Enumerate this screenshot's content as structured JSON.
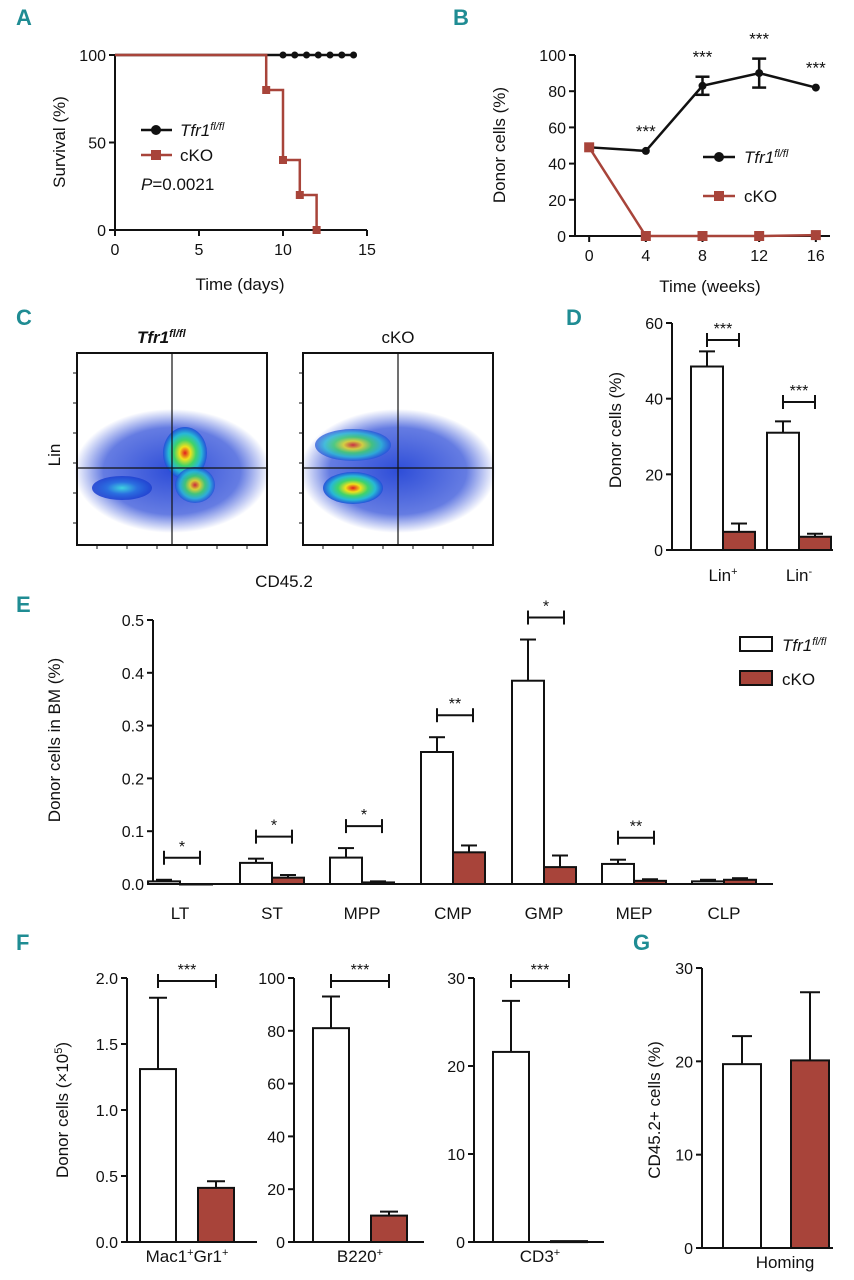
{
  "colors": {
    "teal": "#1f8c93",
    "red": "#a8443a",
    "black": "#111111"
  },
  "legend": {
    "flox": "Tfr1",
    "flox_sup": "fl/fl",
    "cko": "cKO"
  },
  "chart_data": [
    {
      "panel": "A",
      "type": "line",
      "xlabel": "Time (days)",
      "ylabel": "Survival (%)",
      "xlim": [
        0,
        15
      ],
      "ylim": [
        0,
        100
      ],
      "xticks": [
        0,
        5,
        10,
        15
      ],
      "yticks": [
        0,
        50,
        100
      ],
      "annotation": "=0.0021",
      "annotation_prefix": "P",
      "series": [
        {
          "name": "Tfr1 fl/fl",
          "steps": [
            [
              0,
              100
            ],
            [
              14.2,
              100
            ]
          ],
          "markers": [
            [
              10,
              100
            ],
            [
              10.7,
              100
            ],
            [
              11.4,
              100
            ],
            [
              12.1,
              100
            ],
            [
              12.8,
              100
            ],
            [
              13.5,
              100
            ],
            [
              14.2,
              100
            ]
          ]
        },
        {
          "name": "cKO",
          "steps": [
            [
              0,
              100
            ],
            [
              9,
              100
            ],
            [
              9,
              80
            ],
            [
              10,
              80
            ],
            [
              10,
              40
            ],
            [
              11,
              40
            ],
            [
              11,
              20
            ],
            [
              12,
              20
            ],
            [
              12,
              0
            ]
          ],
          "markers": [
            [
              9,
              80
            ],
            [
              10,
              40
            ],
            [
              11,
              20
            ],
            [
              12,
              0
            ]
          ]
        }
      ]
    },
    {
      "panel": "B",
      "type": "line",
      "xlabel": "Time (weeks)",
      "ylabel": "Donor cells (%)",
      "xlim": [
        -1,
        17
      ],
      "ylim": [
        0,
        100
      ],
      "xticks": [
        0,
        4,
        8,
        12,
        16
      ],
      "yticks": [
        0,
        20,
        40,
        60,
        80,
        100
      ],
      "x": [
        0,
        4,
        8,
        12,
        16
      ],
      "series": [
        {
          "name": "Tfr1 fl/fl",
          "values": [
            49,
            47,
            83,
            90,
            82
          ],
          "errors": [
            0,
            0,
            5,
            8,
            0
          ]
        },
        {
          "name": "cKO",
          "values": [
            49,
            0,
            0,
            0,
            0.5
          ],
          "errors": [
            0,
            0,
            0,
            0,
            0
          ]
        }
      ],
      "significance": [
        "",
        "***",
        "***",
        "***",
        "***"
      ]
    },
    {
      "panel": "C",
      "type": "flow-cytometry",
      "plots": [
        "Tfr1 fl/fl",
        "cKO"
      ],
      "xlabel": "CD45.2",
      "ylabel": "Lin"
    },
    {
      "panel": "D",
      "type": "bar",
      "ylabel": "Donor cells (%)",
      "ylim": [
        0,
        60
      ],
      "yticks": [
        0,
        20,
        40,
        60
      ],
      "categories": [
        "Lin",
        "Lin"
      ],
      "category_sups": [
        "+",
        "-"
      ],
      "series": [
        {
          "name": "Tfr1 fl/fl",
          "values": [
            48.5,
            31
          ],
          "errors": [
            4,
            3
          ]
        },
        {
          "name": "cKO",
          "values": [
            4.8,
            3.5
          ],
          "errors": [
            2.2,
            0.8
          ]
        }
      ],
      "significance": [
        "***",
        "***"
      ]
    },
    {
      "panel": "E",
      "type": "bar",
      "ylabel": "Donor cells in BM (%)",
      "ylim": [
        0,
        0.5
      ],
      "yticks": [
        "0.0",
        "0.1",
        "0.2",
        "0.3",
        "0.4",
        "0.5"
      ],
      "categories": [
        "LT",
        "ST",
        "MPP",
        "CMP",
        "GMP",
        "MEP",
        "CLP"
      ],
      "series": [
        {
          "name": "Tfr1 fl/fl",
          "values": [
            0.005,
            0.04,
            0.05,
            0.25,
            0.385,
            0.038,
            0.005
          ],
          "errors": [
            0.003,
            0.008,
            0.018,
            0.028,
            0.078,
            0.008,
            0.003
          ]
        },
        {
          "name": "cKO",
          "values": [
            0,
            0.012,
            0.003,
            0.06,
            0.032,
            0.006,
            0.008
          ],
          "errors": [
            0,
            0.005,
            0.002,
            0.013,
            0.022,
            0.003,
            0.003
          ]
        }
      ],
      "significance": [
        "*",
        "*",
        "*",
        "**",
        "*",
        "**",
        ""
      ]
    },
    {
      "panel": "F1",
      "type": "bar",
      "ylabel": "Donor cells ",
      "ylabel_unit": "(×10",
      "ylabel_sup": "5",
      "ylabel_end": ")",
      "ylim": [
        0,
        2
      ],
      "yticks": [
        "0.0",
        "0.5",
        "1.0",
        "1.5",
        "2.0"
      ],
      "category": "Mac1",
      "category_parts": [
        "Mac1",
        "+",
        "Gr1",
        "+"
      ],
      "series": [
        {
          "name": "Tfr1 fl/fl",
          "values": [
            1.31
          ],
          "errors": [
            0.54
          ]
        },
        {
          "name": "cKO",
          "values": [
            0.41
          ],
          "errors": [
            0.05
          ]
        }
      ],
      "significance": "***"
    },
    {
      "panel": "F2",
      "type": "bar",
      "ylim": [
        0,
        100
      ],
      "yticks": [
        0,
        20,
        40,
        60,
        80,
        100
      ],
      "category_parts": [
        "B220",
        "+"
      ],
      "series": [
        {
          "name": "Tfr1 fl/fl",
          "values": [
            81
          ],
          "errors": [
            12
          ]
        },
        {
          "name": "cKO",
          "values": [
            10
          ],
          "errors": [
            1.5
          ]
        }
      ],
      "significance": "***"
    },
    {
      "panel": "F3",
      "type": "bar",
      "ylim": [
        0,
        30
      ],
      "yticks": [
        0,
        10,
        20,
        30
      ],
      "category_parts": [
        "CD3",
        "+"
      ],
      "series": [
        {
          "name": "Tfr1 fl/fl",
          "values": [
            21.6
          ],
          "errors": [
            5.8
          ]
        },
        {
          "name": "cKO",
          "values": [
            0.1
          ],
          "errors": [
            0
          ]
        }
      ],
      "significance": "***"
    },
    {
      "panel": "G",
      "type": "bar",
      "ylabel": "CD45.2+ cells  (%)",
      "ylim": [
        0,
        30
      ],
      "yticks": [
        0,
        10,
        20,
        30
      ],
      "category": "Homing",
      "series": [
        {
          "name": "Tfr1 fl/fl",
          "values": [
            19.7
          ],
          "errors": [
            3
          ]
        },
        {
          "name": "cKO",
          "values": [
            20.1
          ],
          "errors": [
            7.3
          ]
        }
      ]
    }
  ],
  "panel_letters": [
    "A",
    "B",
    "C",
    "D",
    "E",
    "F",
    "G"
  ]
}
